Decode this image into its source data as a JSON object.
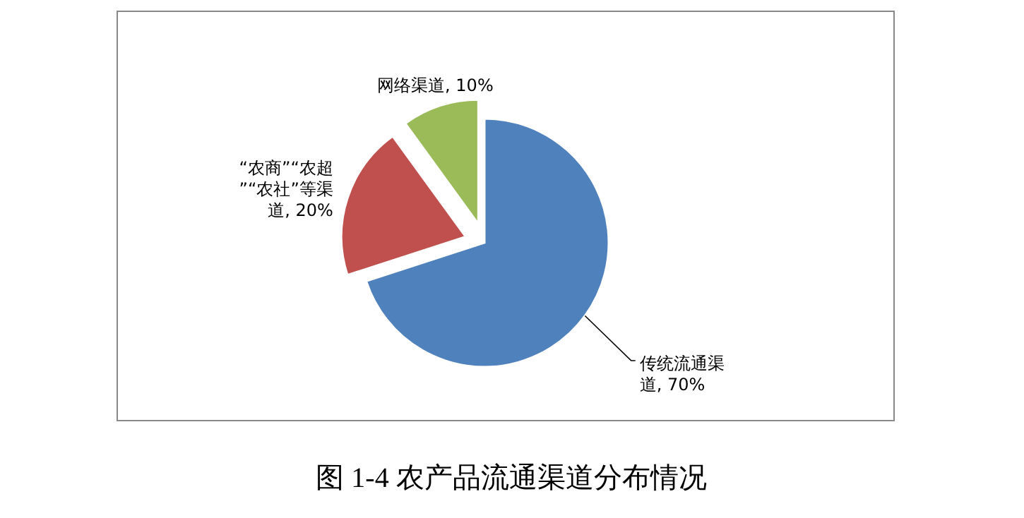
{
  "chart_data": {
    "type": "pie",
    "title": "图 1-4 农产品流通渠道分布情况",
    "categories": [
      "传统流通渠道",
      "“农商”“农超”“农社”等渠道",
      "网络渠道"
    ],
    "values": [
      70,
      20,
      10
    ],
    "value_labels": [
      "70%",
      "20%",
      "10%"
    ],
    "colors": [
      "#4f81bd",
      "#c0504d",
      "#9bbb59"
    ],
    "legend": false
  }
}
